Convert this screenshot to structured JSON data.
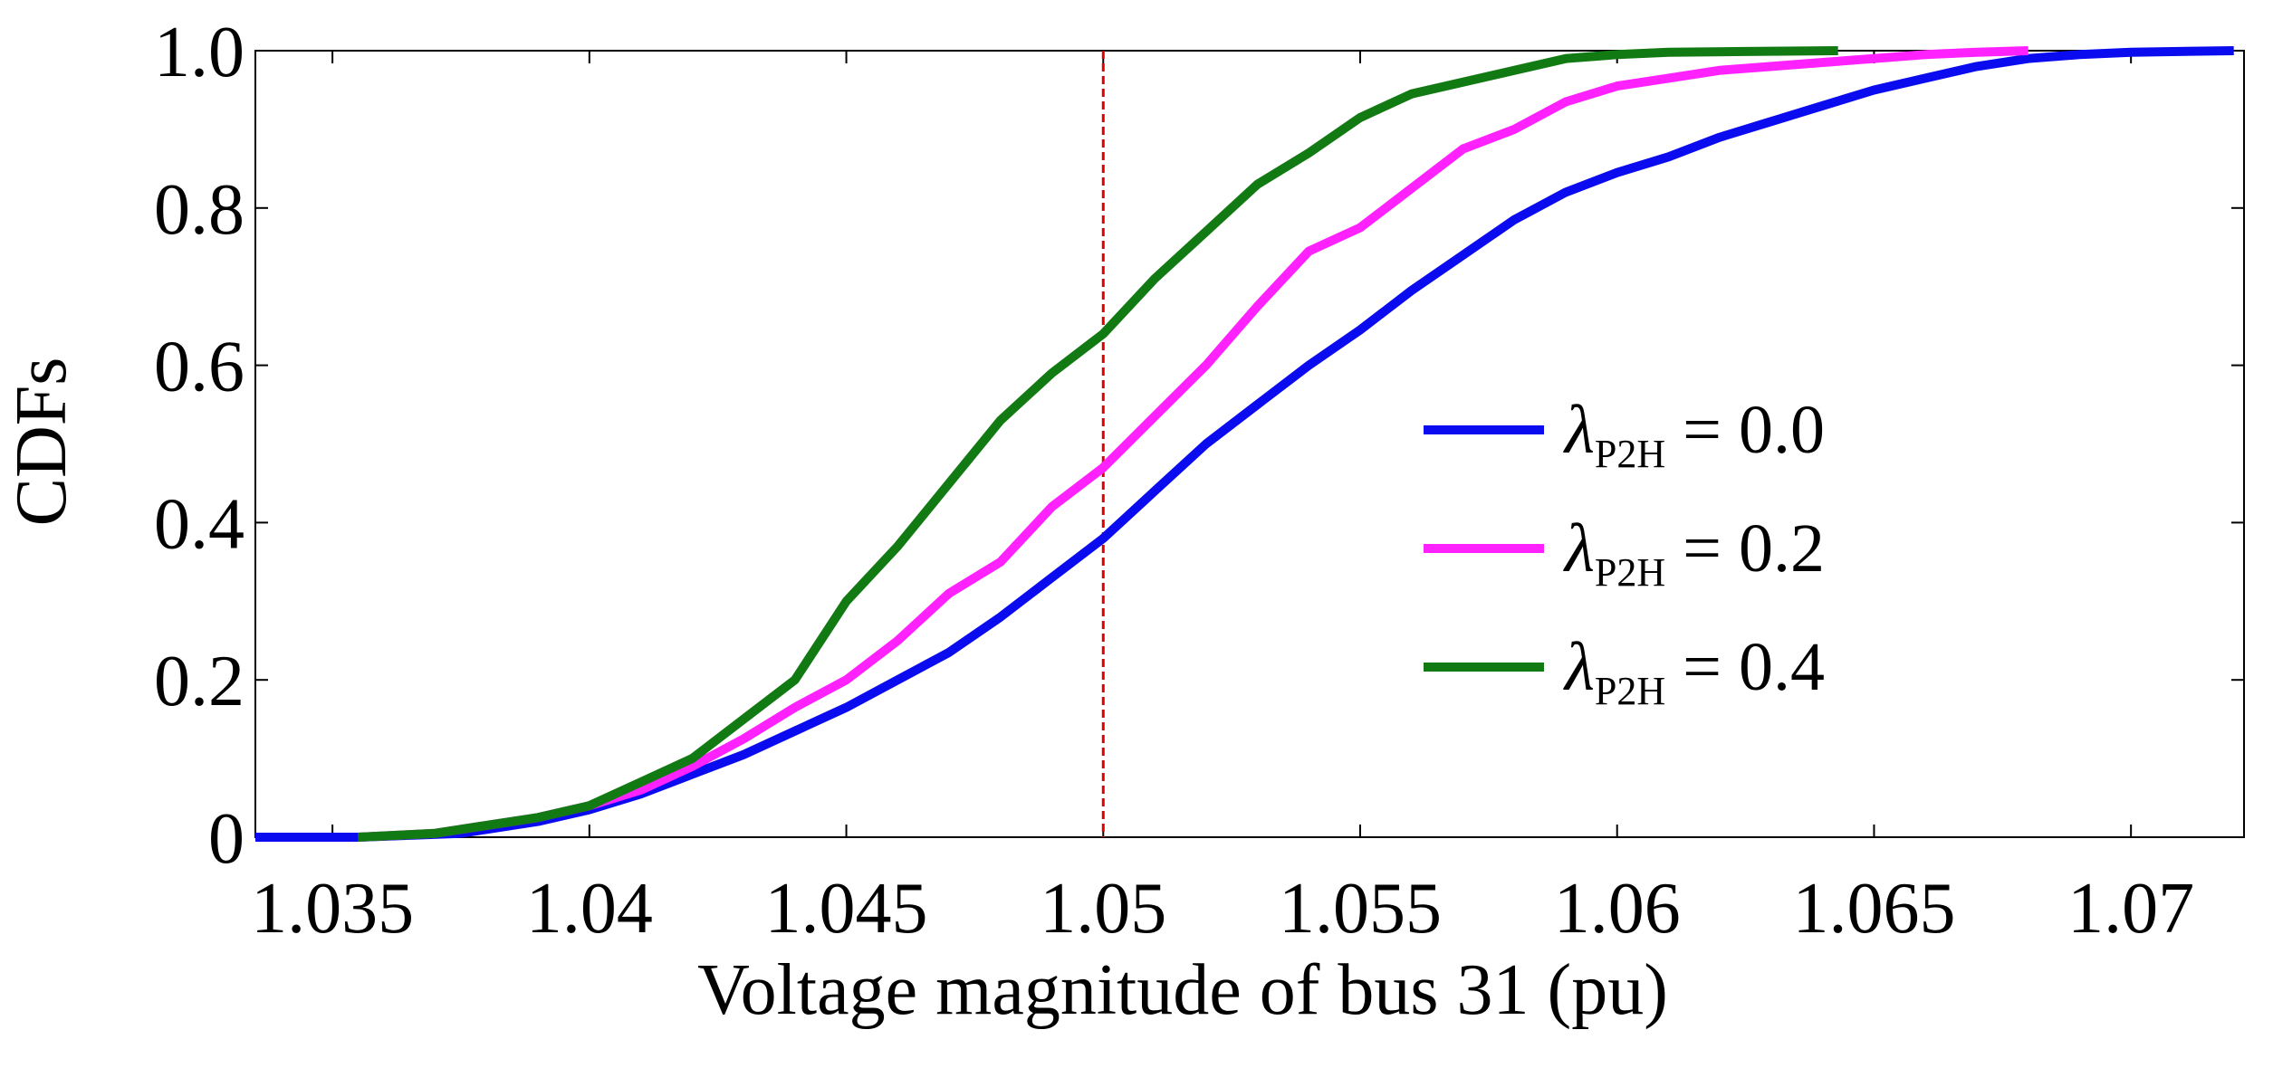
{
  "chart_data": {
    "type": "line",
    "title": "",
    "xlabel": "Voltage magnitude of bus 31 (pu)",
    "ylabel": "CDFs",
    "xlim": [
      1.0335,
      1.0722
    ],
    "ylim": [
      0,
      1.0
    ],
    "xticks": [
      1.035,
      1.04,
      1.045,
      1.05,
      1.055,
      1.06,
      1.065,
      1.07
    ],
    "xtick_labels": [
      "1.035",
      "1.04",
      "1.045",
      "1.05",
      "1.055",
      "1.06",
      "1.065",
      "1.07"
    ],
    "yticks": [
      0,
      0.2,
      0.4,
      0.6,
      0.8,
      1.0
    ],
    "ytick_labels": [
      "0",
      "0.2",
      "0.4",
      "0.6",
      "0.8",
      "1.0"
    ],
    "grid": false,
    "legend_position": "right-center",
    "reference_line": {
      "x": 1.05,
      "color": "#e00000",
      "style": "dashed"
    },
    "series": [
      {
        "name": "λP2H = 0.0",
        "legend_symbol": "λ",
        "legend_subscript": "P2H",
        "legend_value": "= 0.0",
        "color": "#0b0bf0",
        "x": [
          1.0335,
          1.0355,
          1.0375,
          1.039,
          1.04,
          1.041,
          1.042,
          1.043,
          1.044,
          1.045,
          1.046,
          1.047,
          1.048,
          1.049,
          1.05,
          1.051,
          1.052,
          1.053,
          1.054,
          1.055,
          1.056,
          1.057,
          1.058,
          1.059,
          1.06,
          1.061,
          1.062,
          1.063,
          1.064,
          1.065,
          1.066,
          1.067,
          1.068,
          1.069,
          1.07,
          1.072
        ],
        "y": [
          0,
          0,
          0.005,
          0.02,
          0.035,
          0.055,
          0.08,
          0.105,
          0.135,
          0.165,
          0.2,
          0.235,
          0.28,
          0.33,
          0.38,
          0.44,
          0.5,
          0.55,
          0.6,
          0.645,
          0.695,
          0.74,
          0.785,
          0.82,
          0.845,
          0.865,
          0.89,
          0.91,
          0.93,
          0.95,
          0.965,
          0.98,
          0.99,
          0.995,
          0.998,
          1.0
        ]
      },
      {
        "name": "λP2H = 0.2",
        "legend_symbol": "λ",
        "legend_subscript": "P2H",
        "legend_value": "= 0.2",
        "color": "#ff22ff",
        "x": [
          1.0355,
          1.037,
          1.038,
          1.039,
          1.04,
          1.041,
          1.042,
          1.043,
          1.044,
          1.045,
          1.046,
          1.047,
          1.048,
          1.049,
          1.05,
          1.051,
          1.052,
          1.053,
          1.054,
          1.055,
          1.056,
          1.057,
          1.058,
          1.059,
          1.06,
          1.061,
          1.062,
          1.063,
          1.064,
          1.065,
          1.066,
          1.067,
          1.068
        ],
        "y": [
          0,
          0.005,
          0.015,
          0.025,
          0.04,
          0.06,
          0.09,
          0.125,
          0.165,
          0.2,
          0.25,
          0.31,
          0.35,
          0.42,
          0.47,
          0.535,
          0.6,
          0.675,
          0.745,
          0.775,
          0.825,
          0.875,
          0.9,
          0.935,
          0.955,
          0.965,
          0.975,
          0.98,
          0.985,
          0.99,
          0.995,
          0.998,
          1.0
        ]
      },
      {
        "name": "λP2H = 0.4",
        "legend_symbol": "λ",
        "legend_subscript": "P2H",
        "legend_value": "= 0.4",
        "color": "#127a12",
        "x": [
          1.0355,
          1.037,
          1.038,
          1.039,
          1.04,
          1.041,
          1.042,
          1.043,
          1.044,
          1.045,
          1.046,
          1.047,
          1.048,
          1.049,
          1.05,
          1.051,
          1.052,
          1.053,
          1.054,
          1.055,
          1.056,
          1.057,
          1.058,
          1.059,
          1.06,
          1.061,
          1.0625,
          1.0643
        ],
        "y": [
          0,
          0.005,
          0.015,
          0.025,
          0.04,
          0.07,
          0.1,
          0.15,
          0.2,
          0.3,
          0.37,
          0.45,
          0.53,
          0.59,
          0.64,
          0.71,
          0.77,
          0.83,
          0.87,
          0.915,
          0.945,
          0.96,
          0.975,
          0.99,
          0.995,
          0.998,
          0.999,
          1.0
        ]
      }
    ]
  }
}
